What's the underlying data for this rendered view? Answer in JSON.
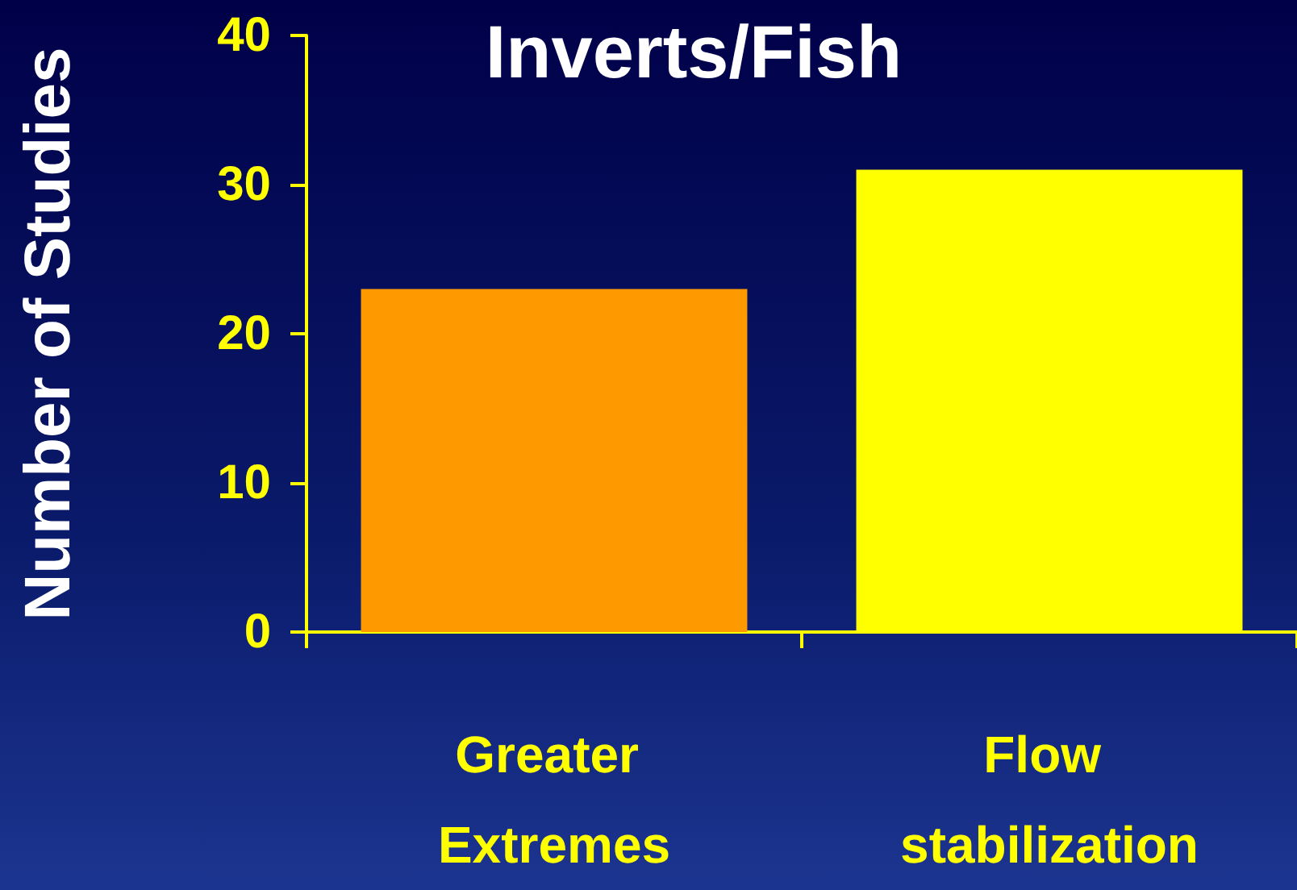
{
  "chart_data": {
    "type": "bar",
    "title": "Inverts/Fish",
    "ylabel": "Number of Studies",
    "categories": [
      "Greater Extremes",
      "Flow stabilization"
    ],
    "values": [
      23,
      31
    ],
    "colors": [
      "#ff9900",
      "#ffff00"
    ],
    "ylim": [
      0,
      40
    ],
    "yticks": [
      0,
      10,
      20,
      30,
      40
    ]
  }
}
